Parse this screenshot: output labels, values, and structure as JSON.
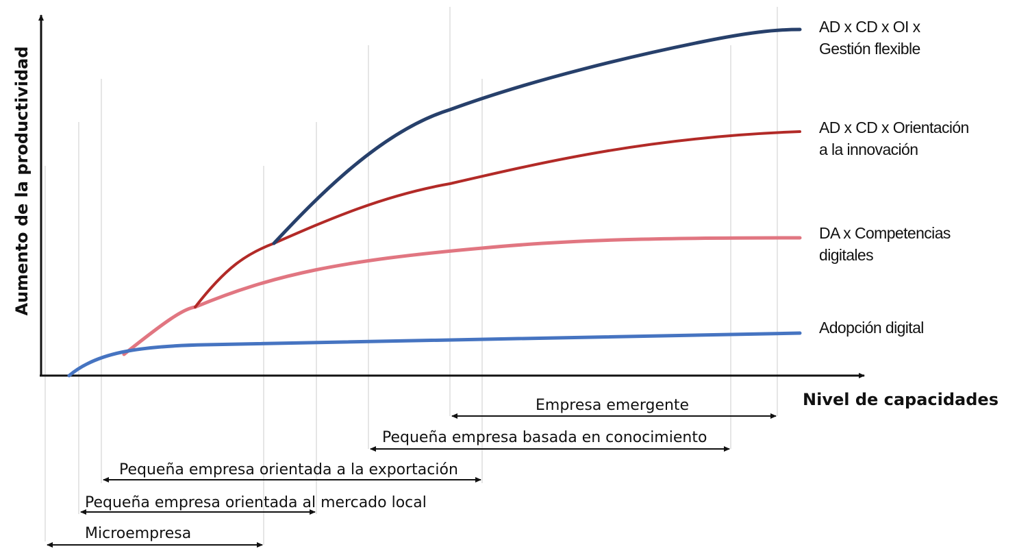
{
  "axes": {
    "x_title": "Nivel de capacidades",
    "y_title": "Aumento de la productividad"
  },
  "series": [
    {
      "id": "flexible",
      "label_lines": [
        "AD x CD x OI x",
        "Gestión flexible"
      ],
      "color": "#27406b"
    },
    {
      "id": "innovacion",
      "label_lines": [
        "AD x CD x Orientación",
        "a la innovación"
      ],
      "color": "#b22a27"
    },
    {
      "id": "competencias",
      "label_lines": [
        "DA x Competencias",
        "digitales"
      ],
      "color": "#e17681"
    },
    {
      "id": "adopcion",
      "label_lines": [
        "Adopción digital"
      ],
      "color": "#4674c1"
    }
  ],
  "company_ranges": [
    {
      "label": "Empresa emergente"
    },
    {
      "label": "Pequeña empresa basada en conocimiento"
    },
    {
      "label": "Pequeña empresa orientada a la exportación"
    },
    {
      "label": "Pequeña empresa orientada al mercado local"
    },
    {
      "label": "Microempresa"
    }
  ]
}
